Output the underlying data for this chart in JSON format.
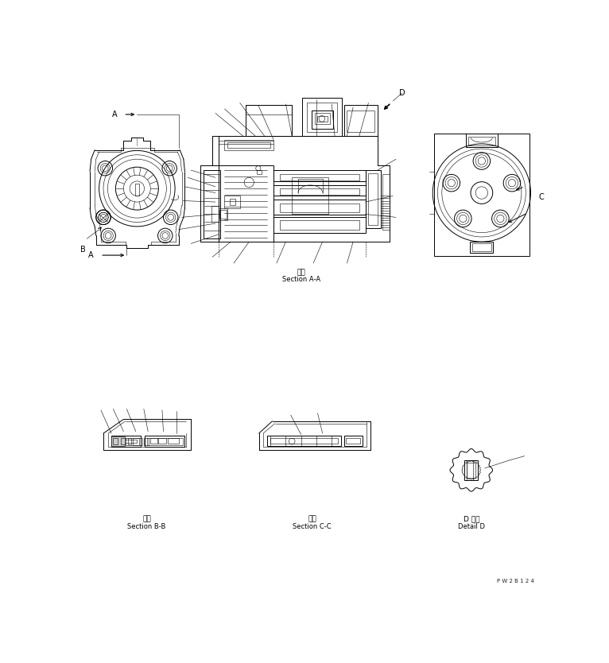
{
  "bg_color": "#ffffff",
  "line_color": "#000000",
  "fig_width": 7.66,
  "fig_height": 8.34,
  "dpi": 100,
  "watermark": "P W 2 B 1 2 4",
  "label_section_aa_jp": "断面",
  "label_section_aa": "Section A-A",
  "label_section_bb_jp": "断面",
  "label_section_bb": "Section B-B",
  "label_section_cc_jp": "断面",
  "label_section_cc": "Section C-C",
  "label_detail_d_jp": "D 詳細",
  "label_detail_d": "Detail D",
  "font_size_label": 5.5,
  "font_size_section": 5.5
}
